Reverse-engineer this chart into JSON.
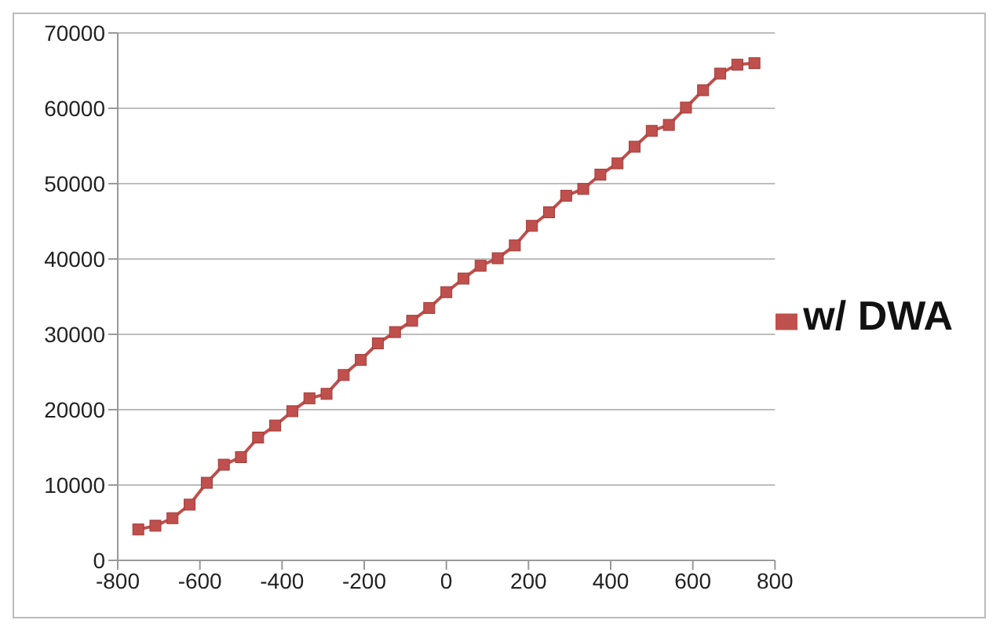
{
  "chart_data": {
    "type": "line",
    "x": [
      -750,
      -708.3,
      -666.7,
      -625,
      -583.3,
      -541.7,
      -500,
      -458.3,
      -416.7,
      -375,
      -333.3,
      -291.7,
      -250,
      -208.3,
      -166.7,
      -125,
      -83.3,
      -41.7,
      0,
      41.7,
      83.3,
      125,
      166.7,
      208.3,
      250,
      291.7,
      333.3,
      375,
      416.7,
      458.3,
      500,
      541.7,
      583.3,
      625,
      666.7,
      708.3,
      750
    ],
    "series": [
      {
        "name": "w/ DWA",
        "color": "#c0504d",
        "values": [
          4100,
          4600,
          5600,
          7400,
          10300,
          12700,
          13700,
          16300,
          17900,
          19800,
          21500,
          22100,
          24600,
          26600,
          28800,
          30300,
          31800,
          33500,
          35600,
          37400,
          39100,
          40100,
          41800,
          44400,
          46200,
          48400,
          49300,
          51200,
          52700,
          54900,
          57000,
          57800,
          60100,
          62400,
          64600,
          65800,
          66000
        ]
      }
    ],
    "xlim": [
      -800,
      800
    ],
    "xticks": [
      -800,
      -600,
      -400,
      -200,
      0,
      200,
      400,
      600,
      800
    ],
    "ylim": [
      0,
      70000
    ],
    "yticks": [
      0,
      10000,
      20000,
      30000,
      40000,
      50000,
      60000,
      70000
    ],
    "grid": "y",
    "legend": "right",
    "marker": "square",
    "line_style": "solid"
  }
}
